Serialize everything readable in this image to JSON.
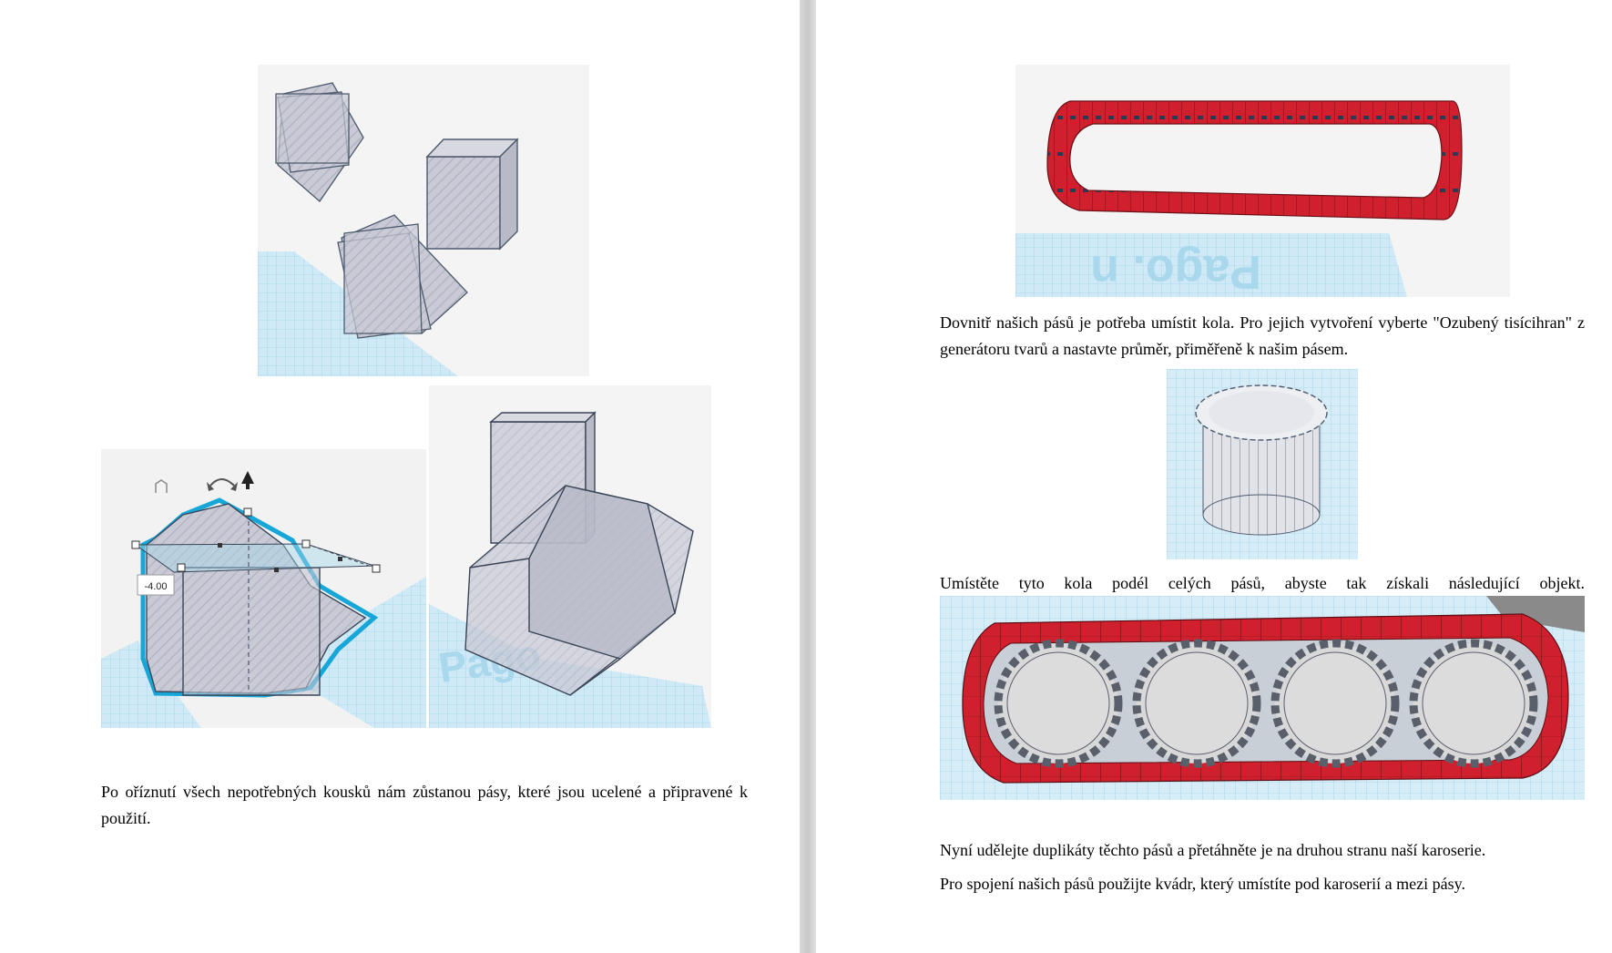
{
  "left_page": {
    "paragraph": "Po oříznutí všech nepotřebných kousků nám zůstanou pásy, které jsou ucelené a připravené k použití.",
    "figures": {
      "top": {
        "caption": ""
      },
      "bottom_left": {
        "measure_value": "-4.00"
      },
      "bottom_right": {
        "watermark": "Pago"
      }
    }
  },
  "right_page": {
    "paragraph1": "Dovnitř našich pásů je potřeba umístit kola. Pro jejich vytvoření vyberte \"Ozubený tisícihran\" z generátoru tvarů a nastavte průměr, přiměřeně k našim pásem.",
    "paragraph2": "Umístěte tyto kola podél celých pásů, abyste tak získali následující objekt.",
    "paragraph3": "Nyní udělejte duplikáty těchto pásů a přetáhněte je na druhou stranu naší karoserie.",
    "paragraph4": "Pro spojení našich pásů použijte kvádr, který umístíte pod karoserií a mezi pásy.",
    "figures": {
      "track": {
        "watermark": "Pago. n"
      }
    }
  },
  "colors": {
    "grid_bg": "#cfeaf6",
    "grid_line": "#8cc8e4",
    "track_red": "#d0202e",
    "shape_gray": "#c9cad6",
    "selection_blue": "#17a6d8",
    "gutter": "#c8c8c8"
  },
  "icons": [
    "rotate-arrow-icon",
    "up-arrow-icon",
    "lift-icon"
  ]
}
